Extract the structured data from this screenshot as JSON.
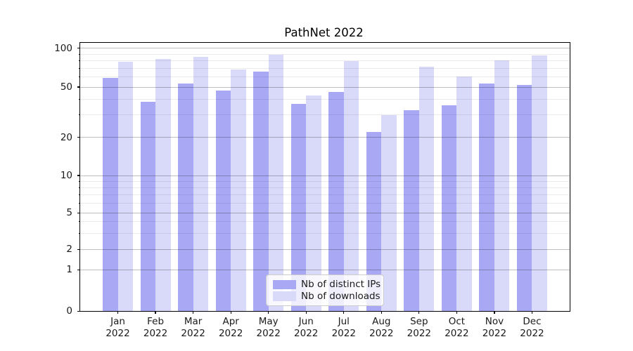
{
  "figure_title": "PathNet 2022",
  "chart_data": {
    "type": "bar",
    "title": "PathNet 2022",
    "categories": [
      "Jan 2022",
      "Feb 2022",
      "Mar 2022",
      "Apr 2022",
      "May 2022",
      "Jun 2022",
      "Jul 2022",
      "Aug 2022",
      "Sep 2022",
      "Oct 2022",
      "Nov 2022",
      "Dec 2022"
    ],
    "series": [
      {
        "name": "Nb of distinct IPs",
        "color": "#a8a8f4",
        "values": [
          59,
          38,
          53,
          47,
          66,
          37,
          46,
          22,
          33,
          36,
          53,
          52
        ]
      },
      {
        "name": "Nb of downloads",
        "color": "#d9d9fa",
        "values": [
          79,
          83,
          86,
          68,
          89,
          43,
          80,
          30,
          72,
          60,
          81,
          88
        ]
      }
    ],
    "xlabel": "",
    "ylabel": "",
    "yscale": "symlog",
    "ylim": [
      0,
      110
    ],
    "y_major_ticks": [
      100,
      50,
      20,
      10,
      5,
      2,
      1,
      0
    ],
    "y_minor_ticks": [
      90,
      80,
      70,
      60,
      40,
      30,
      9,
      8,
      7,
      6,
      4,
      3
    ],
    "grid": true,
    "legend_position": "lower center",
    "colors": {
      "bar_ips": "#a8a8f4",
      "bar_downloads": "#d9d9fa",
      "grid_major": "rgba(0,0,0,0.25)",
      "grid_minor": "rgba(0,0,0,0.08)",
      "axis": "#000000",
      "legend_border": "#cccccc"
    }
  }
}
